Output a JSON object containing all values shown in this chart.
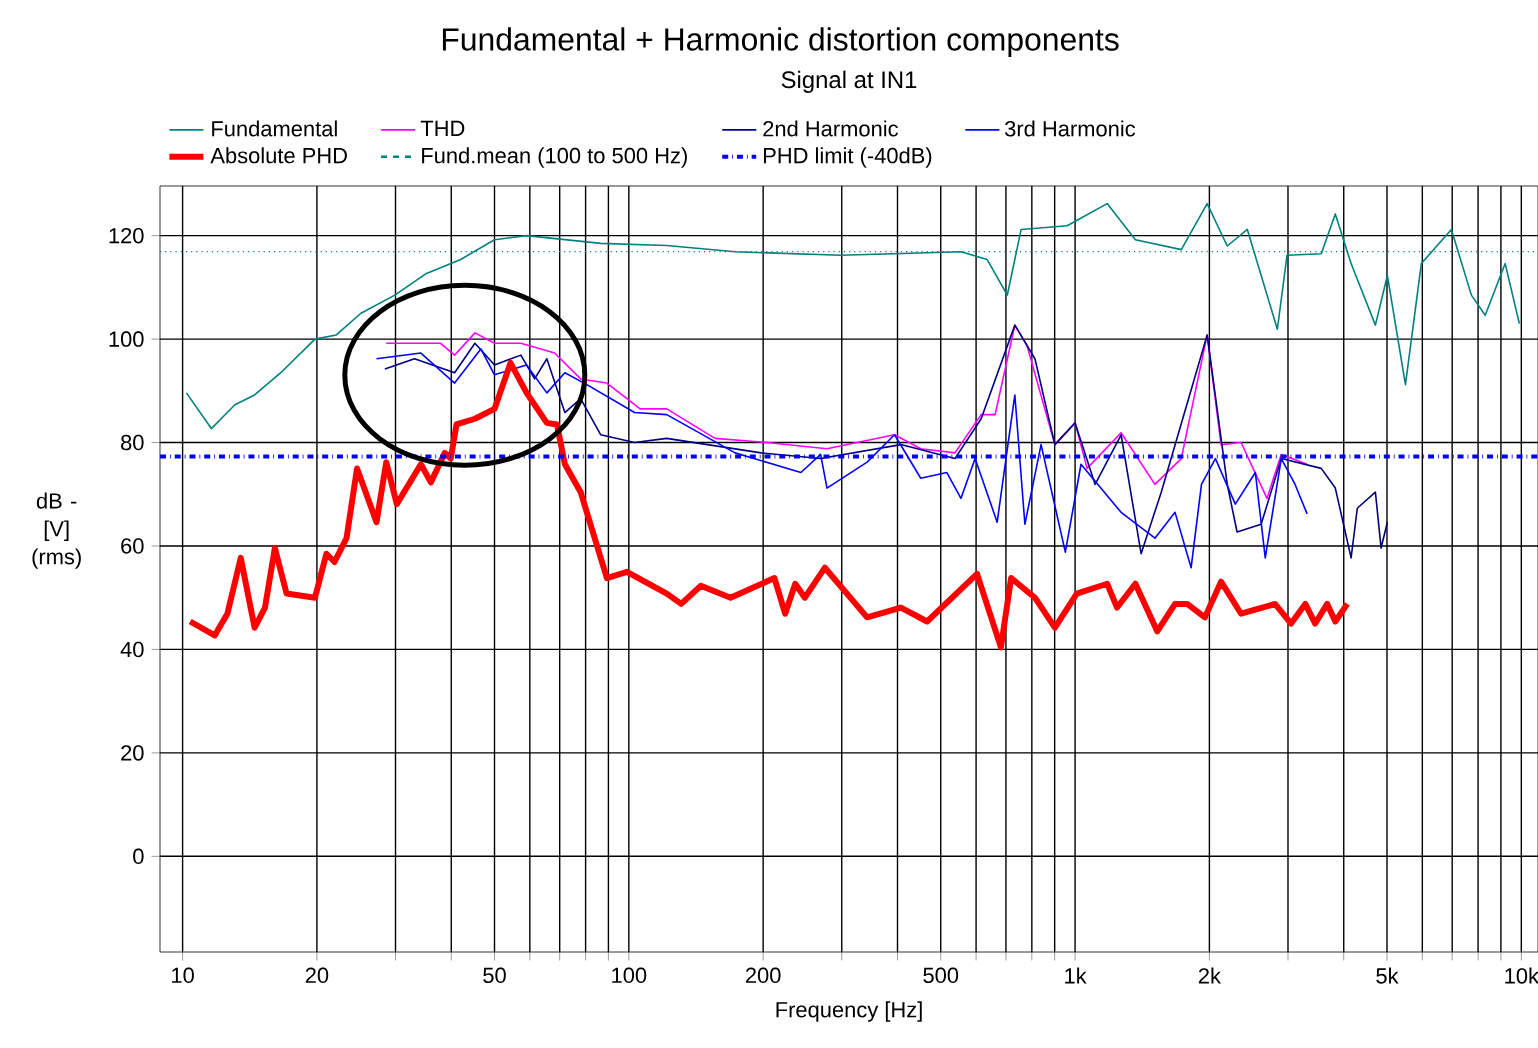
{
  "chart_data": {
    "type": "line",
    "title": "Fundamental + Harmonic distortion components",
    "subtitle": "Signal at IN1",
    "xlabel": "Frequency [Hz]",
    "ylabel": "dB - [V] (rms)",
    "log": "x",
    "grid": true,
    "legend": "top",
    "marker": "none",
    "xlim": [
      8.9,
      10900
    ],
    "ylim": [
      -18.5,
      129.6
    ],
    "xticks": [
      {
        "value": 10,
        "label": "10"
      },
      {
        "value": 20,
        "label": "20"
      },
      {
        "value": 30,
        "label": null
      },
      {
        "value": 40,
        "label": null
      },
      {
        "value": 50,
        "label": "50"
      },
      {
        "value": 60,
        "label": null
      },
      {
        "value": 70,
        "label": null
      },
      {
        "value": 80,
        "label": null
      },
      {
        "value": 90,
        "label": null
      },
      {
        "value": 100,
        "label": "100"
      },
      {
        "value": 200,
        "label": "200"
      },
      {
        "value": 300,
        "label": null
      },
      {
        "value": 400,
        "label": null
      },
      {
        "value": 500,
        "label": "500"
      },
      {
        "value": 600,
        "label": null
      },
      {
        "value": 700,
        "label": null
      },
      {
        "value": 800,
        "label": null
      },
      {
        "value": 900,
        "label": null
      },
      {
        "value": 1000,
        "label": "1k"
      },
      {
        "value": 2000,
        "label": "2k"
      },
      {
        "value": 3000,
        "label": null
      },
      {
        "value": 4000,
        "label": null
      },
      {
        "value": 5000,
        "label": "5k"
      },
      {
        "value": 6000,
        "label": null
      },
      {
        "value": 7000,
        "label": null
      },
      {
        "value": 8000,
        "label": null
      },
      {
        "value": 9000,
        "label": null
      },
      {
        "value": 10000,
        "label": "10k"
      }
    ],
    "yticks": [
      0,
      20,
      40,
      60,
      80,
      100,
      120
    ],
    "series": [
      {
        "name": "Fundamental",
        "color": "#008080",
        "x": [
          10.2,
          11.6,
          13.1,
          14.5,
          16.6,
          19.8,
          22.1,
          25.1,
          29.9,
          35.2,
          42,
          50,
          59,
          86.5,
          121.6,
          173,
          298,
          555,
          635,
          705,
          757,
          960,
          1180,
          1365,
          1730,
          1977,
          2193,
          2432,
          2840,
          2985,
          3562,
          3830,
          4155,
          4710,
          5010,
          5500,
          5970,
          6970,
          7730,
          8300,
          9200,
          9900
        ],
        "values": [
          89.6,
          82.7,
          87.3,
          89.2,
          93.5,
          100,
          100.8,
          105,
          108.5,
          112.7,
          115.4,
          119.2,
          120,
          118.5,
          118.1,
          116.9,
          116.2,
          116.9,
          115.4,
          108.5,
          121.2,
          121.9,
          126.2,
          119.2,
          117.3,
          126.2,
          118,
          121.2,
          101.9,
          116.2,
          116.5,
          124.2,
          114.6,
          102.7,
          112.3,
          91.2,
          114.6,
          121.2,
          108.5,
          104.6,
          114.6,
          103
        ]
      },
      {
        "name": "THD",
        "color": "#ff00ff",
        "x": [
          28.6,
          37.8,
          40.7,
          45.2,
          50,
          57.3,
          68.2,
          78,
          89.3,
          106,
          121.6,
          156,
          204,
          278,
          394,
          451,
          538,
          616,
          662,
          733,
          780,
          901,
          1000,
          1064,
          1268,
          1510,
          1730,
          1977,
          2124,
          2355,
          2692,
          2898,
          3311
        ],
        "values": [
          99.2,
          99.2,
          96.9,
          101.2,
          99.2,
          99.2,
          97.3,
          92.3,
          91.5,
          86.5,
          86.5,
          80.8,
          80,
          78.8,
          81.5,
          78.8,
          78,
          85.4,
          85.4,
          102.7,
          98.8,
          79.6,
          83.8,
          75,
          81.9,
          71.9,
          76.9,
          100.8,
          79.6,
          80,
          69.2,
          77.7,
          75.8
        ]
      },
      {
        "name": "2nd Harmonic",
        "color": "#000080",
        "x": [
          28.4,
          33.1,
          40.7,
          45.2,
          50,
          57.3,
          61.5,
          65.5,
          71.9,
          78,
          86.5,
          103,
          121.6,
          198,
          269,
          407,
          538,
          616,
          733,
          813,
          901,
          1000,
          1109,
          1268,
          1406,
          1560,
          1977,
          2193,
          2307,
          2612,
          2898,
          3562,
          3830,
          4155,
          4290,
          4710,
          4850,
          5010
        ],
        "values": [
          94.2,
          96.2,
          93.5,
          99.2,
          95,
          96.9,
          92.3,
          96.2,
          85.8,
          88.5,
          81.5,
          80,
          80.8,
          78,
          76.9,
          79.6,
          76.9,
          84.6,
          102.7,
          96.2,
          79.6,
          83.8,
          71.9,
          81.5,
          58.5,
          70.4,
          100.8,
          71.9,
          62.7,
          64.2,
          76.9,
          75,
          71.2,
          57.7,
          67.3,
          70.4,
          59.6,
          64.6
        ]
      },
      {
        "name": "3rd Harmonic",
        "color": "#0000ff",
        "x": [
          27.2,
          34.2,
          40.7,
          46.6,
          50,
          59,
          65.5,
          71.9,
          80.5,
          103,
          121.6,
          173,
          243,
          269,
          278,
          342,
          394,
          451,
          516,
          555,
          597,
          669,
          733,
          772,
          839,
          951,
          1031,
          1268,
          1510,
          1675,
          1820,
          1920,
          2063,
          2286,
          2535,
          2668,
          2898,
          3112,
          3311
        ],
        "values": [
          96.2,
          97.3,
          91.5,
          98.1,
          93.1,
          95,
          89.6,
          93.5,
          91.2,
          85.8,
          85.4,
          78,
          74.2,
          77.7,
          71.2,
          76.2,
          81.5,
          73.1,
          74.2,
          69.2,
          76.9,
          64.6,
          89.2,
          64.2,
          79.6,
          58.8,
          75.8,
          66.5,
          61.5,
          66.5,
          55.8,
          71.9,
          76.9,
          68.1,
          74.2,
          57.7,
          76.9,
          71.9,
          66.2
        ]
      },
      {
        "name": "Absolute PHD",
        "color": "#ff0000",
        "x": [
          10.4,
          11.8,
          12.6,
          13.5,
          14.5,
          15.3,
          16.1,
          17.1,
          19.8,
          21,
          21.9,
          23.3,
          24.6,
          27.2,
          28.6,
          30.2,
          34.2,
          36,
          38.7,
          39.9,
          41.1,
          45.2,
          50,
          54.3,
          59,
          65.5,
          69,
          71.9,
          78,
          89.3,
          99,
          121.6,
          131,
          145,
          169,
          212,
          224,
          236,
          248,
          275,
          342,
          407,
          466,
          603,
          682,
          719,
          813,
          901,
          1009,
          1180,
          1242,
          1365,
          1528,
          1675,
          1783,
          1954,
          2124,
          2355,
          2806,
          3048,
          3281,
          3452,
          3673,
          3830,
          4074
        ],
        "values": [
          45.4,
          42.7,
          46.9,
          57.7,
          44.2,
          48.1,
          59.6,
          50.8,
          50,
          58.5,
          56.9,
          61.5,
          75,
          64.6,
          76.2,
          68.1,
          75.8,
          72.3,
          78,
          76.9,
          83.5,
          84.6,
          86.5,
          95.4,
          89.6,
          83.8,
          83.5,
          75.8,
          70.4,
          53.8,
          55,
          50.8,
          48.8,
          52.3,
          50,
          53.8,
          46.9,
          52.7,
          50,
          55.8,
          46.2,
          48.1,
          45.4,
          54.6,
          40.4,
          53.8,
          50,
          44.2,
          50.8,
          52.7,
          48.1,
          52.7,
          43.5,
          48.8,
          48.8,
          46.2,
          53.1,
          46.9,
          48.8,
          45,
          48.8,
          45,
          48.8,
          45.4,
          48.8
        ]
      }
    ],
    "ref_lines": [
      {
        "axis": "y",
        "value": 116.9,
        "label": "Fund.mean (100 to 500 Hz)",
        "color": "#008080",
        "line_style": "dotted"
      },
      {
        "axis": "y",
        "value": 77.3,
        "label": "PHD limit (-40dB)",
        "color": "#0000ff",
        "line_style": "dashdot"
      }
    ]
  }
}
